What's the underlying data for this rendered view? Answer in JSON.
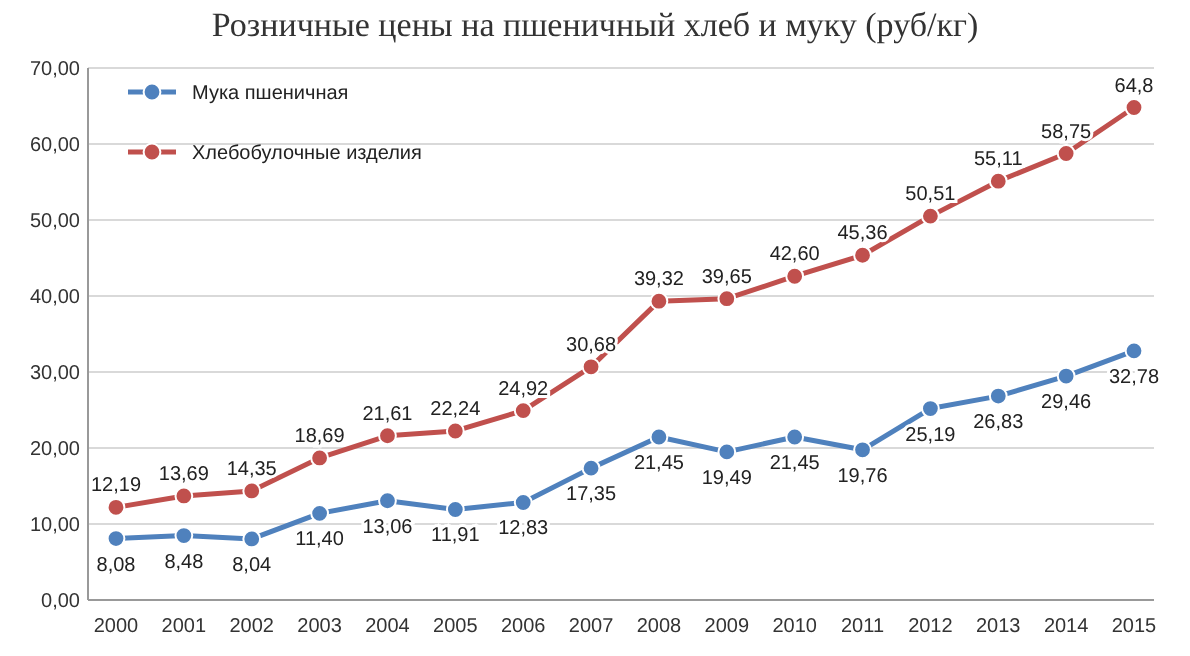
{
  "chart_data": {
    "type": "line",
    "title": "Розничные цены на пшеничный хлеб и муку (руб/кг)",
    "categories": [
      "2000",
      "2001",
      "2002",
      "2003",
      "2004",
      "2005",
      "2006",
      "2007",
      "2008",
      "2009",
      "2010",
      "2011",
      "2012",
      "2013",
      "2014",
      "2015"
    ],
    "series": [
      {
        "name": "Мука пшеничная",
        "color": "#4f81bd",
        "values": [
          8.08,
          8.48,
          8.04,
          11.4,
          13.06,
          11.91,
          12.83,
          17.35,
          21.45,
          19.49,
          21.45,
          19.76,
          25.19,
          26.83,
          29.46,
          32.78
        ],
        "value_labels": [
          "8,08",
          "8,48",
          "8,04",
          "11,40",
          "13,06",
          "11,91",
          "12,83",
          "17,35",
          "21,45",
          "19,49",
          "21,45",
          "19,76",
          "25,19",
          "26,83",
          "29,46",
          "32,78"
        ]
      },
      {
        "name": "Хлебобулочные изделия",
        "color": "#c0504d",
        "values": [
          12.19,
          13.69,
          14.35,
          18.69,
          21.61,
          22.24,
          24.92,
          30.68,
          39.32,
          39.65,
          42.6,
          45.36,
          50.51,
          55.11,
          58.75,
          64.8
        ],
        "value_labels": [
          "12,19",
          "13,69",
          "14,35",
          "18,69",
          "21,61",
          "22,24",
          "24,92",
          "30,68",
          "39,32",
          "39,65",
          "42,60",
          "45,36",
          "50,51",
          "55,11",
          "58,75",
          "64,8"
        ]
      }
    ],
    "ylim": [
      0,
      70
    ],
    "yticks": [
      {
        "value": 0,
        "label": "0,00"
      },
      {
        "value": 10,
        "label": "10,00"
      },
      {
        "value": 20,
        "label": "20,00"
      },
      {
        "value": 30,
        "label": "30,00"
      },
      {
        "value": 40,
        "label": "40,00"
      },
      {
        "value": 50,
        "label": "50,00"
      },
      {
        "value": 60,
        "label": "60,00"
      },
      {
        "value": 70,
        "label": "70,00"
      }
    ],
    "grid": "y",
    "legend": "top left",
    "marker": "circle",
    "line_style": "solid"
  }
}
